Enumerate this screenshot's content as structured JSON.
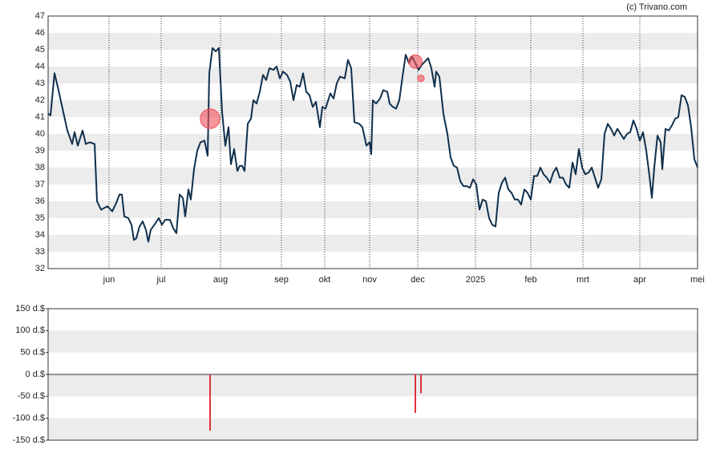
{
  "source": "(c) Trivano.com",
  "chart_data": [
    {
      "type": "line",
      "xlim": [
        0,
        405
      ],
      "xticks": [
        {
          "value": 38,
          "label": "jun"
        },
        {
          "value": 70.5,
          "label": "jul"
        },
        {
          "value": 107.5,
          "label": "aug"
        },
        {
          "value": 145.5,
          "label": "sep"
        },
        {
          "value": 172.5,
          "label": "okt"
        },
        {
          "value": 200.5,
          "label": "nov"
        },
        {
          "value": 230.5,
          "label": "dec"
        },
        {
          "value": 266.5,
          "label": "2025"
        },
        {
          "value": 301,
          "label": "feb"
        },
        {
          "value": 333.5,
          "label": "mrt"
        },
        {
          "value": 369,
          "label": "apr"
        },
        {
          "value": 405,
          "label": "mei"
        }
      ],
      "ylim": [
        32,
        47
      ],
      "yticks": [
        32,
        33,
        34,
        35,
        36,
        37,
        38,
        39,
        40,
        41,
        42,
        43,
        44,
        45,
        46,
        47
      ],
      "grid": true,
      "color": "#0f2f4c",
      "x": [
        0,
        1.5,
        4,
        6,
        9,
        12,
        15,
        16.5,
        18.5,
        21.5,
        23.5,
        26,
        29,
        30.5,
        33,
        35,
        37,
        40,
        42.5,
        44.5,
        46,
        47.5,
        50,
        52,
        53.5,
        55,
        57,
        59,
        61,
        62.5,
        64,
        67,
        69,
        71,
        73,
        76,
        78,
        80,
        82,
        84,
        85.5,
        87.5,
        89,
        91,
        93,
        95,
        97.5,
        99.5,
        100.5,
        102.5,
        104.5,
        106.5,
        108.5,
        110.5,
        112.5,
        114,
        116,
        118,
        119.5,
        121,
        122.5,
        124.5,
        126.5,
        128,
        130,
        132,
        134,
        136,
        138,
        140.5,
        142.5,
        144.5,
        146.5,
        149,
        151,
        153,
        155,
        157,
        159,
        161,
        163,
        165,
        167,
        169.5,
        171,
        173,
        176,
        178,
        180,
        182,
        185,
        187,
        189,
        191,
        194,
        196,
        198.5,
        200.5,
        201.5,
        202.5,
        204.5,
        207,
        209,
        211.5,
        213,
        215,
        217,
        219,
        221,
        223,
        225,
        227,
        229,
        231,
        233,
        235,
        237,
        239,
        241,
        242,
        244,
        246.5,
        249,
        251,
        253,
        255,
        257,
        259,
        261,
        263,
        265,
        267,
        269,
        271,
        273,
        275,
        277,
        279,
        281,
        283,
        285,
        287,
        289,
        291,
        293,
        295,
        297,
        299,
        301,
        303,
        305,
        307,
        309,
        311,
        313,
        315,
        317,
        319,
        321,
        323,
        325,
        327,
        329,
        331,
        333,
        335,
        337,
        339,
        341,
        343,
        345,
        347,
        349,
        351,
        353,
        355,
        357,
        359,
        361,
        363,
        365,
        367,
        369,
        371,
        373,
        375,
        376.5,
        378,
        380,
        382,
        383,
        385,
        387,
        389,
        391,
        393,
        395,
        397,
        399,
        401,
        403,
        405
      ],
      "values": [
        41.2,
        41.1,
        43.6,
        42.8,
        41.5,
        40.2,
        39.4,
        40.1,
        39.3,
        40.2,
        39.4,
        39.5,
        39.4,
        36.0,
        35.5,
        35.6,
        35.7,
        35.4,
        35.9,
        36.4,
        36.4,
        35.1,
        35.0,
        34.6,
        33.7,
        33.8,
        34.5,
        34.8,
        34.3,
        33.6,
        34.3,
        34.7,
        35.0,
        34.6,
        34.9,
        34.9,
        34.4,
        34.1,
        36.4,
        36.2,
        35.1,
        36.7,
        36.1,
        37.9,
        39.0,
        39.5,
        39.6,
        38.7,
        43.6,
        45.1,
        44.9,
        45.1,
        41.3,
        39.3,
        40.4,
        38.2,
        39.1,
        37.8,
        38.1,
        38.1,
        37.8,
        40.6,
        40.9,
        42.0,
        41.8,
        42.5,
        43.5,
        43.2,
        43.9,
        43.8,
        44.0,
        43.3,
        43.7,
        43.5,
        43.1,
        42.0,
        42.9,
        42.8,
        43.6,
        42.5,
        42.3,
        41.6,
        41.9,
        40.4,
        41.6,
        41.5,
        42.4,
        42.1,
        43.0,
        43.4,
        43.3,
        44.4,
        43.9,
        40.7,
        40.6,
        40.4,
        39.3,
        39.5,
        38.8,
        42.0,
        41.8,
        42.1,
        42.6,
        42.5,
        41.8,
        41.6,
        41.5,
        42.0,
        43.4,
        44.7,
        44.2,
        44.6,
        44.2,
        43.8,
        44.1,
        44.3,
        44.5,
        43.9,
        42.8,
        43.7,
        43.4,
        41.2,
        40.0,
        38.6,
        38.1,
        38.0,
        37.2,
        36.9,
        36.9,
        36.8,
        37.3,
        37.0,
        35.5,
        36.1,
        36.0,
        35.0,
        34.6,
        34.5,
        36.5,
        37.1,
        37.4,
        36.7,
        36.5,
        36.1,
        36.1,
        35.8,
        36.7,
        36.5,
        36.1,
        37.5,
        37.5,
        38.0,
        37.6,
        37.4,
        37.1,
        37.7,
        38.0,
        37.4,
        37.4,
        37.0,
        36.8,
        38.3,
        37.6,
        39.1,
        38.0,
        37.6,
        37.7,
        38.0,
        37.4,
        36.8,
        37.3,
        40.0,
        40.6,
        40.3,
        39.9,
        40.3,
        40.0,
        39.7,
        40.0,
        40.1,
        40.8,
        40.3,
        39.6,
        40.1,
        39.0,
        37.5,
        36.2,
        38.0,
        39.9,
        39.5,
        37.9,
        40.3,
        40.2,
        40.5,
        40.9,
        41.0,
        42.3,
        42.2,
        41.7,
        40.4,
        38.5,
        38.0
      ],
      "markers": {
        "color": "#f0505a",
        "x": [
          101,
          229,
          232.5
        ],
        "values": [
          40.9,
          44.3,
          43.3
        ]
      }
    },
    {
      "type": "bar",
      "xlim": [
        0,
        405
      ],
      "ylim": [
        -150,
        150
      ],
      "yticks": [
        {
          "value": 150,
          "label": "150 d.$"
        },
        {
          "value": 100,
          "label": "100 d.$"
        },
        {
          "value": 50,
          "label": "50 d.$"
        },
        {
          "value": 0,
          "label": "0 d.$"
        },
        {
          "value": -50,
          "label": "-50 d.$"
        },
        {
          "value": -100,
          "label": "-100 d.$"
        },
        {
          "value": -150,
          "label": "-150 d.$"
        }
      ],
      "grid": true,
      "color": "#e0303a",
      "x": [
        101,
        229,
        232.5
      ],
      "values": [
        -128,
        -88,
        -43
      ]
    }
  ]
}
